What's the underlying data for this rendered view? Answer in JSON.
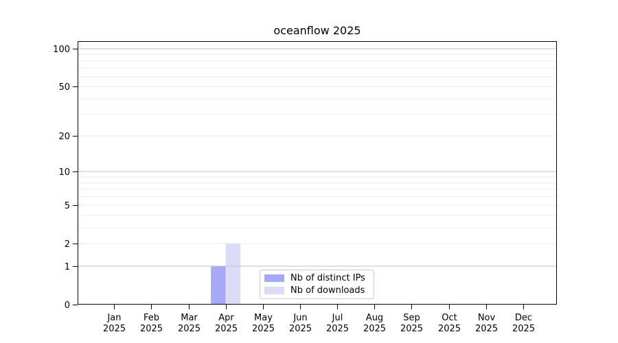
{
  "title": "oceanflow 2025",
  "chart_data": {
    "type": "bar",
    "title": "oceanflow 2025",
    "categories": [
      "Jan 2025",
      "Feb 2025",
      "Mar 2025",
      "Apr 2025",
      "May 2025",
      "Jun 2025",
      "Jul 2025",
      "Aug 2025",
      "Sep 2025",
      "Oct 2025",
      "Nov 2025",
      "Dec 2025"
    ],
    "series": [
      {
        "name": "Nb of distinct IPs",
        "color": "#a8a8f8",
        "values": [
          0,
          0,
          0,
          1,
          0,
          0,
          0,
          0,
          0,
          0,
          0,
          0
        ]
      },
      {
        "name": "Nb of downloads",
        "color": "#dcdcf8",
        "values": [
          0,
          0,
          0,
          2,
          0,
          0,
          0,
          0,
          0,
          0,
          0,
          0
        ]
      }
    ],
    "xlabel": "",
    "ylabel": "",
    "yscale": "log1p",
    "ylim": [
      0,
      100
    ],
    "yticks": [
      0,
      1,
      2,
      5,
      10,
      20,
      50,
      100
    ],
    "grid": "on",
    "grid_major_values": [
      1,
      10,
      100
    ],
    "grid_minor_values": [
      2,
      3,
      4,
      5,
      6,
      7,
      8,
      9,
      20,
      30,
      40,
      50,
      60,
      70,
      80,
      90
    ],
    "legend_position": "lower center",
    "colors": {
      "bar_distinct_ips": "#a8a8f8",
      "bar_downloads": "#dcdcf8",
      "grid_major": "#c0c0c0",
      "grid_minor": "#ebebeb",
      "axis": "#000000",
      "tick_text": "#000000",
      "legend_border": "#cccccc"
    }
  }
}
